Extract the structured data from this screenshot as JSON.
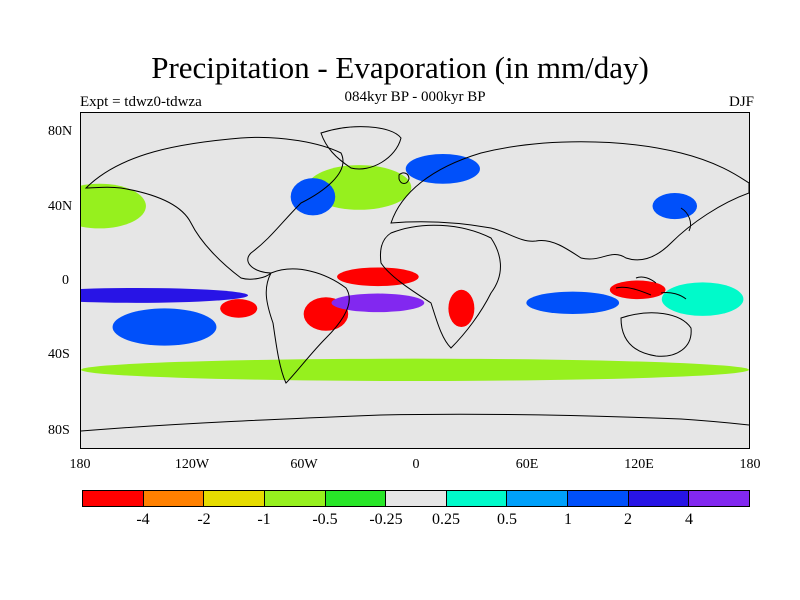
{
  "header": {
    "title": "Precipitation - Evaporation (in mm/day)",
    "subtitle": "084kyr BP - 000kyr BP",
    "left_label": "Expt = tdwz0-tdwza",
    "right_label": "DJF"
  },
  "map": {
    "background_color": "#e6e6e6",
    "lat_labels": [
      "80N",
      "40N",
      "0",
      "40S",
      "80S"
    ],
    "lon_labels": [
      "180",
      "120W",
      "60W",
      "0",
      "60E",
      "120E",
      "180"
    ],
    "fields": [
      {
        "name": "tropical-atlantic-dry",
        "cls": 1,
        "lon": -20,
        "lat": 2,
        "rx": 22,
        "ry": 5
      },
      {
        "name": "eq-pacific-band-wet",
        "cls": 10,
        "lon": -150,
        "lat": -8,
        "rx": 60,
        "ry": 4
      },
      {
        "name": "south-atlantic-wet",
        "cls": 11,
        "lon": -20,
        "lat": -12,
        "rx": 25,
        "ry": 5
      },
      {
        "name": "south-pacific-wet",
        "cls": 9,
        "lon": -135,
        "lat": -25,
        "rx": 28,
        "ry": 10
      },
      {
        "name": "indian-ocean-wet",
        "cls": 9,
        "lon": 85,
        "lat": -12,
        "rx": 25,
        "ry": 6
      },
      {
        "name": "maritime-continent-dry",
        "cls": 1,
        "lon": 120,
        "lat": -5,
        "rx": 15,
        "ry": 5
      },
      {
        "name": "north-atlantic-wet",
        "cls": 9,
        "lon": -55,
        "lat": 45,
        "rx": 12,
        "ry": 10
      },
      {
        "name": "north-pacific-wet",
        "cls": 9,
        "lon": 140,
        "lat": 40,
        "rx": 12,
        "ry": 7
      },
      {
        "name": "brazil-dry",
        "cls": 1,
        "lon": -48,
        "lat": -18,
        "rx": 12,
        "ry": 9
      },
      {
        "name": "south-africa-dry",
        "cls": 1,
        "lon": 25,
        "lat": -15,
        "rx": 7,
        "ry": 10
      },
      {
        "name": "southern-ocean-green",
        "cls": 4,
        "lon": 0,
        "lat": -48,
        "rx": 180,
        "ry": 6
      },
      {
        "name": "north-atlantic-green",
        "cls": 4,
        "lon": -30,
        "lat": 50,
        "rx": 28,
        "ry": 12
      },
      {
        "name": "north-pacific-green",
        "cls": 4,
        "lon": -170,
        "lat": 40,
        "rx": 25,
        "ry": 12
      },
      {
        "name": "northern-europe-wet",
        "cls": 9,
        "lon": 15,
        "lat": 60,
        "rx": 20,
        "ry": 8
      },
      {
        "name": "east-pacific-dry",
        "cls": 1,
        "lon": -95,
        "lat": -15,
        "rx": 10,
        "ry": 5
      },
      {
        "name": "west-pacific-cyan",
        "cls": 7,
        "lon": 155,
        "lat": -10,
        "rx": 22,
        "ry": 9
      }
    ]
  },
  "colorbar": {
    "colors": [
      "#ff0000",
      "#ff8000",
      "#e6dc00",
      "#96f01e",
      "#28e628",
      "#e6e6e6",
      "#00faca",
      "#00a0fa",
      "#0050fa",
      "#2814e6",
      "#8228f0"
    ],
    "labels": [
      "-4",
      "-2",
      "-1",
      "-0.5",
      "-0.25",
      "0.25",
      "0.5",
      "1",
      "2",
      "4"
    ]
  }
}
